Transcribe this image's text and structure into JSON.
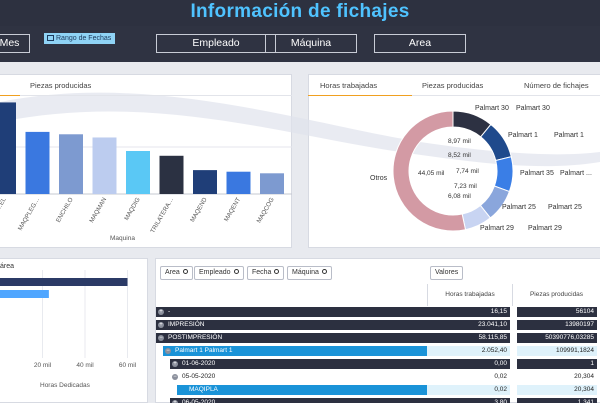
{
  "header": {
    "title": "Información de fichajes"
  },
  "filters": {
    "mes_label": "Mes",
    "range_label": "Rango de Fechas",
    "empleado_label": "Empleado",
    "maquina_label": "Máquina",
    "area_label": "Area"
  },
  "left_panel": {
    "tab_label": "Piezas producidas",
    "xlabel": "Maquina"
  },
  "right_panel": {
    "tabs": [
      "Horas trabajadas",
      "Piezas producidas",
      "Número de fichajes"
    ]
  },
  "area_panel": {
    "title_fragment": "área",
    "xlabel": "Horas Dedicadas"
  },
  "table": {
    "toolbar": [
      "Area",
      "Empleado",
      "Fecha",
      "Máquina"
    ],
    "values_chip": "Valores",
    "col_headers": [
      "Horas trabajadas",
      "Piezas producidas"
    ],
    "rows": [
      {
        "label": "-",
        "indent": 0,
        "v1": "16,15",
        "v2": "56104",
        "style": "dark",
        "expander": "+"
      },
      {
        "label": "IMPRESIÓN",
        "indent": 0,
        "v1": "23.041,10",
        "v2": "13980197",
        "style": "dark",
        "expander": "+"
      },
      {
        "label": "POSTIMPRESIÓN",
        "indent": 0,
        "v1": "58.115,85",
        "v2": "50390776,03285",
        "style": "dark",
        "expander": "−"
      },
      {
        "label": "Palmart 1 Palmart 1",
        "indent": 1,
        "v1": "2.052,40",
        "v2": "109991,1824",
        "style": "sel",
        "expander": "−"
      },
      {
        "label": "01-06-2020",
        "indent": 2,
        "v1": "0,00",
        "v2": "1",
        "style": "dark",
        "expander": "+"
      },
      {
        "label": "05-05-2020",
        "indent": 2,
        "v1": "0,02",
        "v2": "20,304",
        "style": "plain",
        "expander": "−"
      },
      {
        "label": "MAQIPLA",
        "indent": 3,
        "v1": "0,02",
        "v2": "20,304",
        "style": "sel",
        "expander": ""
      },
      {
        "label": "06-05-2020",
        "indent": 2,
        "v1": "3,80",
        "v2": "1.341",
        "style": "dark",
        "expander": "+"
      }
    ]
  },
  "chart_data": [
    {
      "type": "bar",
      "categories": [
        "…EL",
        "MAQPLEG…",
        "ENCHILO",
        "MAQMAN",
        "MAQDIG",
        "TRILATERA…",
        "MAQEND",
        "MAQENT",
        "MAQCOG"
      ],
      "values": [
        115,
        78,
        75,
        71,
        54,
        48,
        30,
        28,
        26
      ],
      "colors": [
        "#1f3e78",
        "#3a78e0",
        "#7d9ad0",
        "#bcccef",
        "#5ac8f5",
        "#2b3142",
        "#1f3e78",
        "#3a78e0",
        "#7d9ad0"
      ],
      "xlabel": "Maquina",
      "ylim": [
        0,
        160
      ],
      "grid": true
    },
    {
      "type": "pie",
      "donut": true,
      "labels": [
        "Palmart 30",
        "Palmart 1",
        "Palmart 35",
        "Palmart 25",
        "Palmart 29",
        "Otros"
      ],
      "values": [
        8.97,
        8.52,
        7.74,
        7.23,
        6.08,
        44.05
      ],
      "slice_labels": [
        "8,97 mil",
        "8,52 mil",
        "7,74 mil",
        "7,23 mil",
        "6,08 mil",
        "44,05 mil"
      ],
      "colors": [
        "#2d3142",
        "#1f4a8c",
        "#3a7ee6",
        "#8aa6dc",
        "#c8d4f2",
        "#d39aa4"
      ],
      "outer_labels": [
        {
          "text": "Palmart 30",
          "side": "right"
        },
        {
          "text": "Palmart 30",
          "side": "right"
        },
        {
          "text": "Palmart 1",
          "side": "right"
        },
        {
          "text": "Palmart 1",
          "side": "right"
        },
        {
          "text": "Palmart 35",
          "side": "right"
        },
        {
          "text": "Palmart ...",
          "side": "right"
        },
        {
          "text": "Palmart 25",
          "side": "right"
        },
        {
          "text": "Palmart 25",
          "side": "right"
        },
        {
          "text": "Palmart 29",
          "side": "right"
        },
        {
          "text": "Palmart 29",
          "side": "right"
        },
        {
          "text": "Otros",
          "side": "left"
        }
      ]
    },
    {
      "type": "bar",
      "orientation": "horizontal",
      "values": [
        60,
        23
      ],
      "colors": [
        "#2b3a66",
        "#4fa6ff"
      ],
      "xticks": [
        "20 mil",
        "40 mil",
        "60 mil"
      ],
      "xlim": [
        0,
        64
      ],
      "xlabel": "Horas Dedicadas"
    }
  ]
}
